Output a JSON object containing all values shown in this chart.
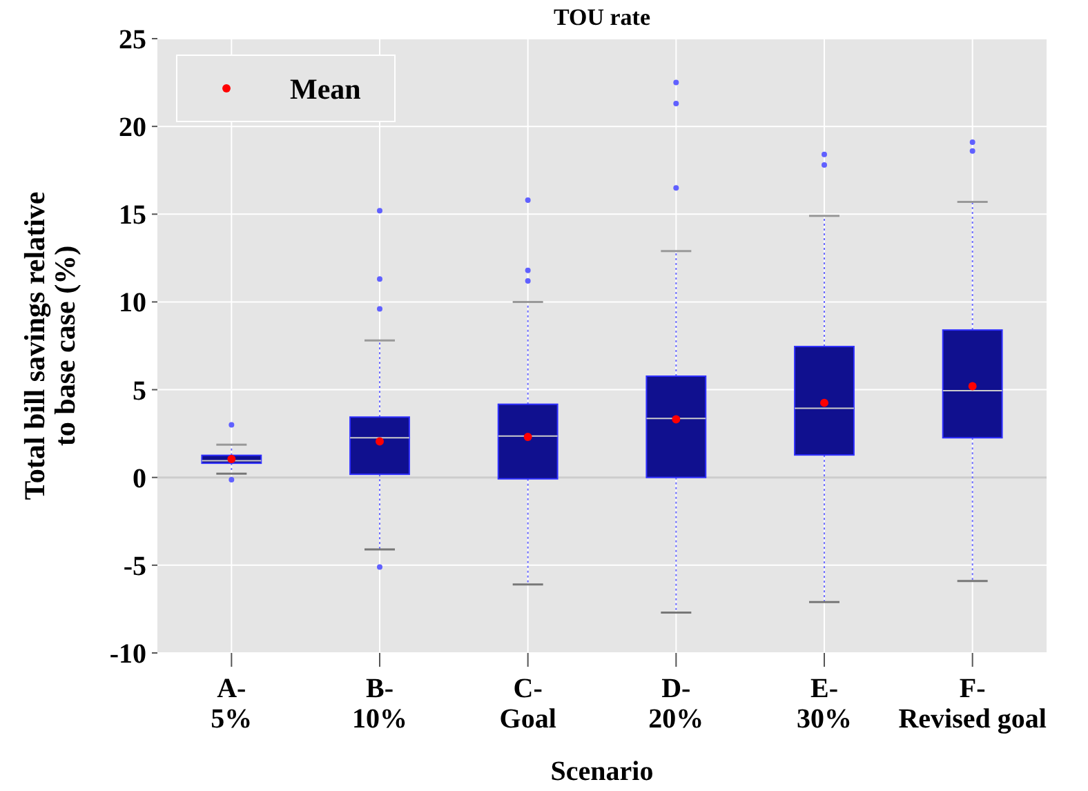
{
  "chart_data": {
    "type": "box",
    "title": "TOU rate",
    "xlabel": "Scenario",
    "ylabel": "Total bill savings relative\nto base case (%)",
    "categories": [
      "A-\n5%",
      "B-\n10%",
      "C-\nGoal",
      "D-\n20%",
      "E-\n30%",
      "F-\nRevised goal"
    ],
    "boxes": [
      {
        "low": 0.21,
        "q1": 0.81,
        "median": 0.95,
        "q3": 1.26,
        "high": 1.87,
        "outliers": [
          3.0,
          -0.13
        ]
      },
      {
        "low": -4.1,
        "q1": 0.18,
        "median": 2.26,
        "q3": 3.44,
        "high": 7.8,
        "outliers": [
          15.2,
          11.3,
          9.6,
          -5.1
        ]
      },
      {
        "low": -6.1,
        "q1": -0.08,
        "median": 2.36,
        "q3": 4.17,
        "high": 10.0,
        "outliers": [
          15.8,
          11.8,
          11.2
        ]
      },
      {
        "low": -7.7,
        "q1": 0,
        "median": 3.36,
        "q3": 5.77,
        "high": 12.9,
        "outliers": [
          22.5,
          21.3,
          16.5
        ]
      },
      {
        "low": -7.1,
        "q1": 1.28,
        "median": 3.94,
        "q3": 7.46,
        "high": 14.9,
        "outliers": [
          18.4,
          17.8
        ]
      },
      {
        "low": -5.9,
        "q1": 2.26,
        "median": 4.94,
        "q3": 8.4,
        "high": 15.7,
        "outliers": [
          19.1,
          18.6
        ]
      }
    ],
    "color": "#10108f",
    "series": [
      {
        "type": "scatter",
        "name": "Mean",
        "color": "#ff0000",
        "x": [
          "A-\n5%",
          "B-\n10%",
          "C-\nGoal",
          "D-\n20%",
          "E-\n30%",
          "F-\nRevised goal"
        ],
        "values": [
          1.05,
          2.05,
          2.31,
          3.31,
          4.25,
          5.2
        ]
      }
    ],
    "ylim": [
      -10,
      25
    ],
    "yticks": [
      -10,
      -5,
      0,
      5,
      10,
      15,
      20,
      25
    ],
    "ref_lines": [
      {
        "axis": "y",
        "value": 0,
        "color": "#cccccc"
      }
    ],
    "grid": true,
    "legend": "top left",
    "marker": "circle"
  }
}
